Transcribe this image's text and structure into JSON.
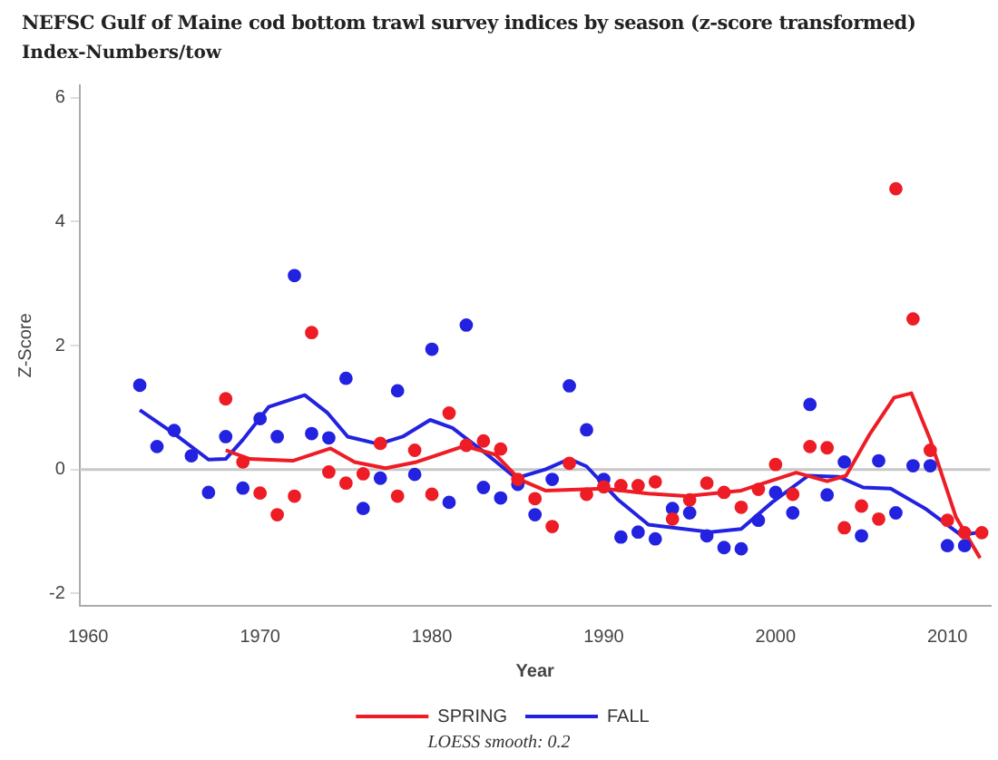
{
  "chart_data": {
    "type": "scatter",
    "title": "NEFSC Gulf of Maine cod bottom trawl survey indices by season (z-score transformed)",
    "subtitle": "Index-Numbers/tow",
    "xlabel": "Year",
    "ylabel": "Z-Score",
    "annotations": [
      "LOESS smooth: 0.2"
    ],
    "xlim": [
      1959.5,
      2012.5
    ],
    "xticks": [
      1960,
      1970,
      1980,
      1990,
      2000,
      2010
    ],
    "ylim": [
      -2.2,
      6.2
    ],
    "yticks": [
      -2,
      0,
      2,
      4,
      6
    ],
    "grid": false,
    "legend": "bottom",
    "ref_lines": [
      {
        "axis": "y",
        "value": 0,
        "color": "#c8c8c8"
      }
    ],
    "series": [
      {
        "name": "SPRING",
        "type": "line",
        "marker": "none",
        "color": "#ee1c25",
        "x": [
          1968,
          1969.4,
          1971.9,
          1974.1,
          1975.5,
          1977.3,
          1979.1,
          1981.9,
          1983.7,
          1985.1,
          1986.6,
          1990,
          1992.6,
          1994.8,
          1998,
          2001.2,
          2003,
          2004.1,
          2005.5,
          2006.9,
          2007.9,
          2009,
          2010.5,
          2011.9
        ],
        "values": [
          0.31,
          0.17,
          0.14,
          0.34,
          0.12,
          0.02,
          0.12,
          0.38,
          0.24,
          -0.16,
          -0.34,
          -0.31,
          -0.39,
          -0.43,
          -0.34,
          -0.05,
          -0.19,
          -0.1,
          0.58,
          1.16,
          1.23,
          0.48,
          -0.77,
          -1.43
        ]
      },
      {
        "name": "FALL",
        "type": "line",
        "marker": "none",
        "color": "#2222e0",
        "x": [
          1963,
          1965,
          1967,
          1968,
          1969,
          1970.5,
          1972.6,
          1973.9,
          1975.1,
          1976.9,
          1978.3,
          1979.9,
          1981.2,
          1983,
          1984.9,
          1986.6,
          1988,
          1989,
          1990.8,
          1992.6,
          1996.2,
          1998,
          1999.8,
          2001.9,
          2003.7,
          2005.1,
          2006.7,
          2008.7,
          2010.8,
          2011.9
        ],
        "values": [
          0.96,
          0.58,
          0.16,
          0.17,
          0.48,
          1.01,
          1.2,
          0.92,
          0.53,
          0.41,
          0.53,
          0.8,
          0.67,
          0.29,
          -0.14,
          0,
          0.17,
          0.05,
          -0.48,
          -0.89,
          -1.01,
          -0.96,
          -0.53,
          -0.1,
          -0.12,
          -0.29,
          -0.31,
          -0.63,
          -1.06,
          -1.01
        ]
      },
      {
        "type": "scatter",
        "marker": "circle",
        "color": "#ee1c25",
        "x": [
          1968,
          1969,
          1970,
          1971,
          1972,
          1973,
          1974,
          1975,
          1976,
          1977,
          1978,
          1979,
          1980,
          1981,
          1982,
          1983,
          1984,
          1985,
          1986,
          1987,
          1988,
          1989,
          1990,
          1991,
          1992,
          1993,
          1994,
          1995,
          1996,
          1997,
          1998,
          1999,
          2000,
          2001,
          2002,
          2003,
          2004,
          2005,
          2006,
          2007,
          2008,
          2009,
          2010,
          2011,
          2012
        ],
        "values": [
          1.14,
          0.12,
          -0.38,
          -0.73,
          -0.43,
          2.21,
          -0.04,
          -0.22,
          -0.07,
          0.42,
          -0.43,
          0.31,
          -0.4,
          0.91,
          0.39,
          0.46,
          0.33,
          -0.16,
          -0.47,
          -0.92,
          0.1,
          -0.4,
          -0.28,
          -0.26,
          -0.26,
          -0.2,
          -0.8,
          -0.49,
          -0.22,
          -0.37,
          -0.61,
          -0.32,
          0.08,
          -0.4,
          0.37,
          0.35,
          -0.94,
          -0.59,
          -0.8,
          4.53,
          2.43,
          0.31,
          -0.82,
          -1.02,
          -1.02
        ]
      },
      {
        "type": "scatter",
        "marker": "circle",
        "color": "#2222e0",
        "x": [
          1963,
          1964,
          1965,
          1966,
          1967,
          1968,
          1969,
          1970,
          1971,
          1972,
          1973,
          1974,
          1975,
          1976,
          1977,
          1978,
          1979,
          1980,
          1981,
          1982,
          1983,
          1984,
          1985,
          1986,
          1987,
          1988,
          1989,
          1990,
          1991,
          1992,
          1993,
          1994,
          1995,
          1996,
          1997,
          1998,
          1999,
          2000,
          2001,
          2002,
          2003,
          2004,
          2005,
          2006,
          2007,
          2008,
          2009,
          2010,
          2011
        ],
        "values": [
          1.36,
          0.37,
          0.63,
          0.22,
          -0.37,
          0.53,
          -0.3,
          0.82,
          0.53,
          3.13,
          0.58,
          0.51,
          1.47,
          -0.63,
          -0.14,
          1.27,
          -0.08,
          1.94,
          -0.53,
          2.33,
          -0.29,
          -0.46,
          -0.24,
          -0.73,
          -0.16,
          1.35,
          0.64,
          -0.16,
          -1.09,
          -1.01,
          -1.12,
          -0.63,
          -0.7,
          -1.07,
          -1.26,
          -1.28,
          -0.82,
          -0.37,
          -0.7,
          1.05,
          -0.41,
          0.12,
          -1.07,
          0.14,
          -0.7,
          0.06,
          0.06,
          -1.23,
          -1.23
        ]
      }
    ]
  }
}
